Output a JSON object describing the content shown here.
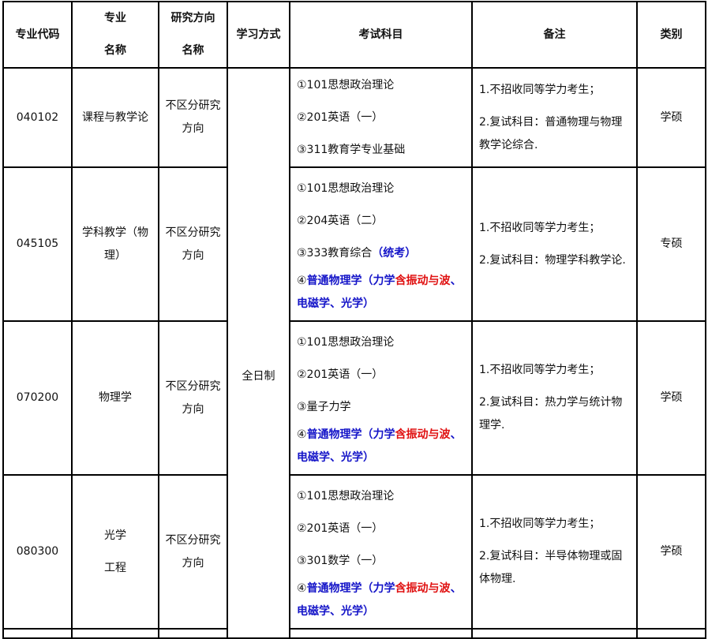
{
  "headers": {
    "code": "专业代码",
    "major_l1": "专业",
    "major_l2": "名称",
    "direction_l1": "研究方向",
    "direction_l2": "名称",
    "mode": "学习方式",
    "subjects": "考试科目",
    "remarks": "备注",
    "category": "类别"
  },
  "study_mode": "全日制",
  "colors": {
    "blue": "#1414c8",
    "red": "#e01010"
  },
  "rows": [
    {
      "code": "040102",
      "major": "课程与教学论",
      "direction": "不区分研究方向",
      "subjects": [
        "①101思想政治理论",
        "②201英语（一）",
        "③311教育学专业基础"
      ],
      "remark1": "1.不招收同等学力考生；",
      "remark2": "2.复试科目：普通物理与物理教学论综合.",
      "category": "学硕"
    },
    {
      "code": "045105",
      "major": "学科教学（物理）",
      "direction": "不区分研究方向",
      "subjects": [
        "①101思想政治理论",
        "②204英语（二）",
        "③333教育综合"
      ],
      "s3_note": "（统考）",
      "s4_prefix": "④",
      "s4_blue": "普通物理学（力学",
      "s4_red": "含振动与波",
      "s4_blue2": "、电磁学、光学）",
      "remark1": "1.不招收同等学力考生；",
      "remark2": "2.复试科目：物理学科教学论.",
      "category": "专硕"
    },
    {
      "code": "070200",
      "major": "物理学",
      "direction": "不区分研究方向",
      "subjects": [
        "①101思想政治理论",
        "②201英语（一）",
        "③量子力学"
      ],
      "s4_prefix": "④",
      "s4_blue": "普通物理学（力学",
      "s4_red": "含振动与波",
      "s4_blue2": "、电磁学、光学）",
      "remark1": "1.不招收同等学力考生；",
      "remark2": "2.复试科目：热力学与统计物理学.",
      "category": "学硕"
    },
    {
      "code": "080300",
      "major_l1": "光学",
      "major_l2": "工程",
      "direction": "不区分研究方向",
      "subjects": [
        "①101思想政治理论",
        "②201英语（一）",
        "③301数学（一）"
      ],
      "s4_prefix": "④",
      "s4_blue": "普通物理学（力学",
      "s4_red": "含振动与波",
      "s4_blue2": "、电磁学、光学）",
      "remark1": "1.不招收同等学力考生；",
      "remark2": "2.复试科目：半导体物理或固体物理.",
      "category": "学硕"
    }
  ]
}
